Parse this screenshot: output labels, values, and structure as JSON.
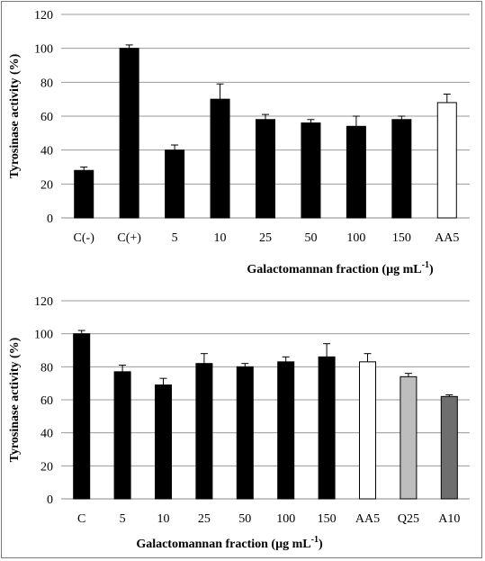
{
  "chart_data": [
    {
      "type": "bar",
      "xlabel": "Galactomannan fraction (µg mL",
      "xlabel_sup": "-1",
      "xlabel_tail": ")",
      "ylabel": "Tyrosinase activity (%)",
      "ylim": [
        0,
        120
      ],
      "yticks": [
        0,
        20,
        40,
        60,
        80,
        100,
        120
      ],
      "grid": true,
      "categories": [
        "C(-)",
        "C(+)",
        "5",
        "10",
        "25",
        "50",
        "100",
        "150",
        "AA5"
      ],
      "values": [
        28,
        100,
        40,
        70,
        58,
        56,
        54,
        58,
        68
      ],
      "errors": [
        2,
        2,
        3,
        9,
        3,
        2,
        6,
        2,
        5
      ],
      "bar_colors": [
        "#000000",
        "#000000",
        "#000000",
        "#000000",
        "#000000",
        "#000000",
        "#000000",
        "#000000",
        "#ffffff"
      ]
    },
    {
      "type": "bar",
      "xlabel": "Galactomannan fraction (µg mL",
      "xlabel_sup": "-1",
      "xlabel_tail": ")",
      "ylabel": "Tyrosinase activity (%)",
      "ylim": [
        0,
        120
      ],
      "yticks": [
        0,
        20,
        40,
        60,
        80,
        100,
        120
      ],
      "grid": true,
      "categories": [
        "C",
        "5",
        "10",
        "25",
        "50",
        "100",
        "150",
        "AA5",
        "Q25",
        "A10"
      ],
      "values": [
        100,
        77,
        69,
        82,
        80,
        83,
        86,
        83,
        74,
        62
      ],
      "errors": [
        2,
        4,
        4,
        6,
        2,
        3,
        8,
        5,
        2,
        1
      ],
      "bar_colors": [
        "#000000",
        "#000000",
        "#000000",
        "#000000",
        "#000000",
        "#000000",
        "#000000",
        "#ffffff",
        "#bdbdbd",
        "#6e6e6e"
      ]
    }
  ]
}
